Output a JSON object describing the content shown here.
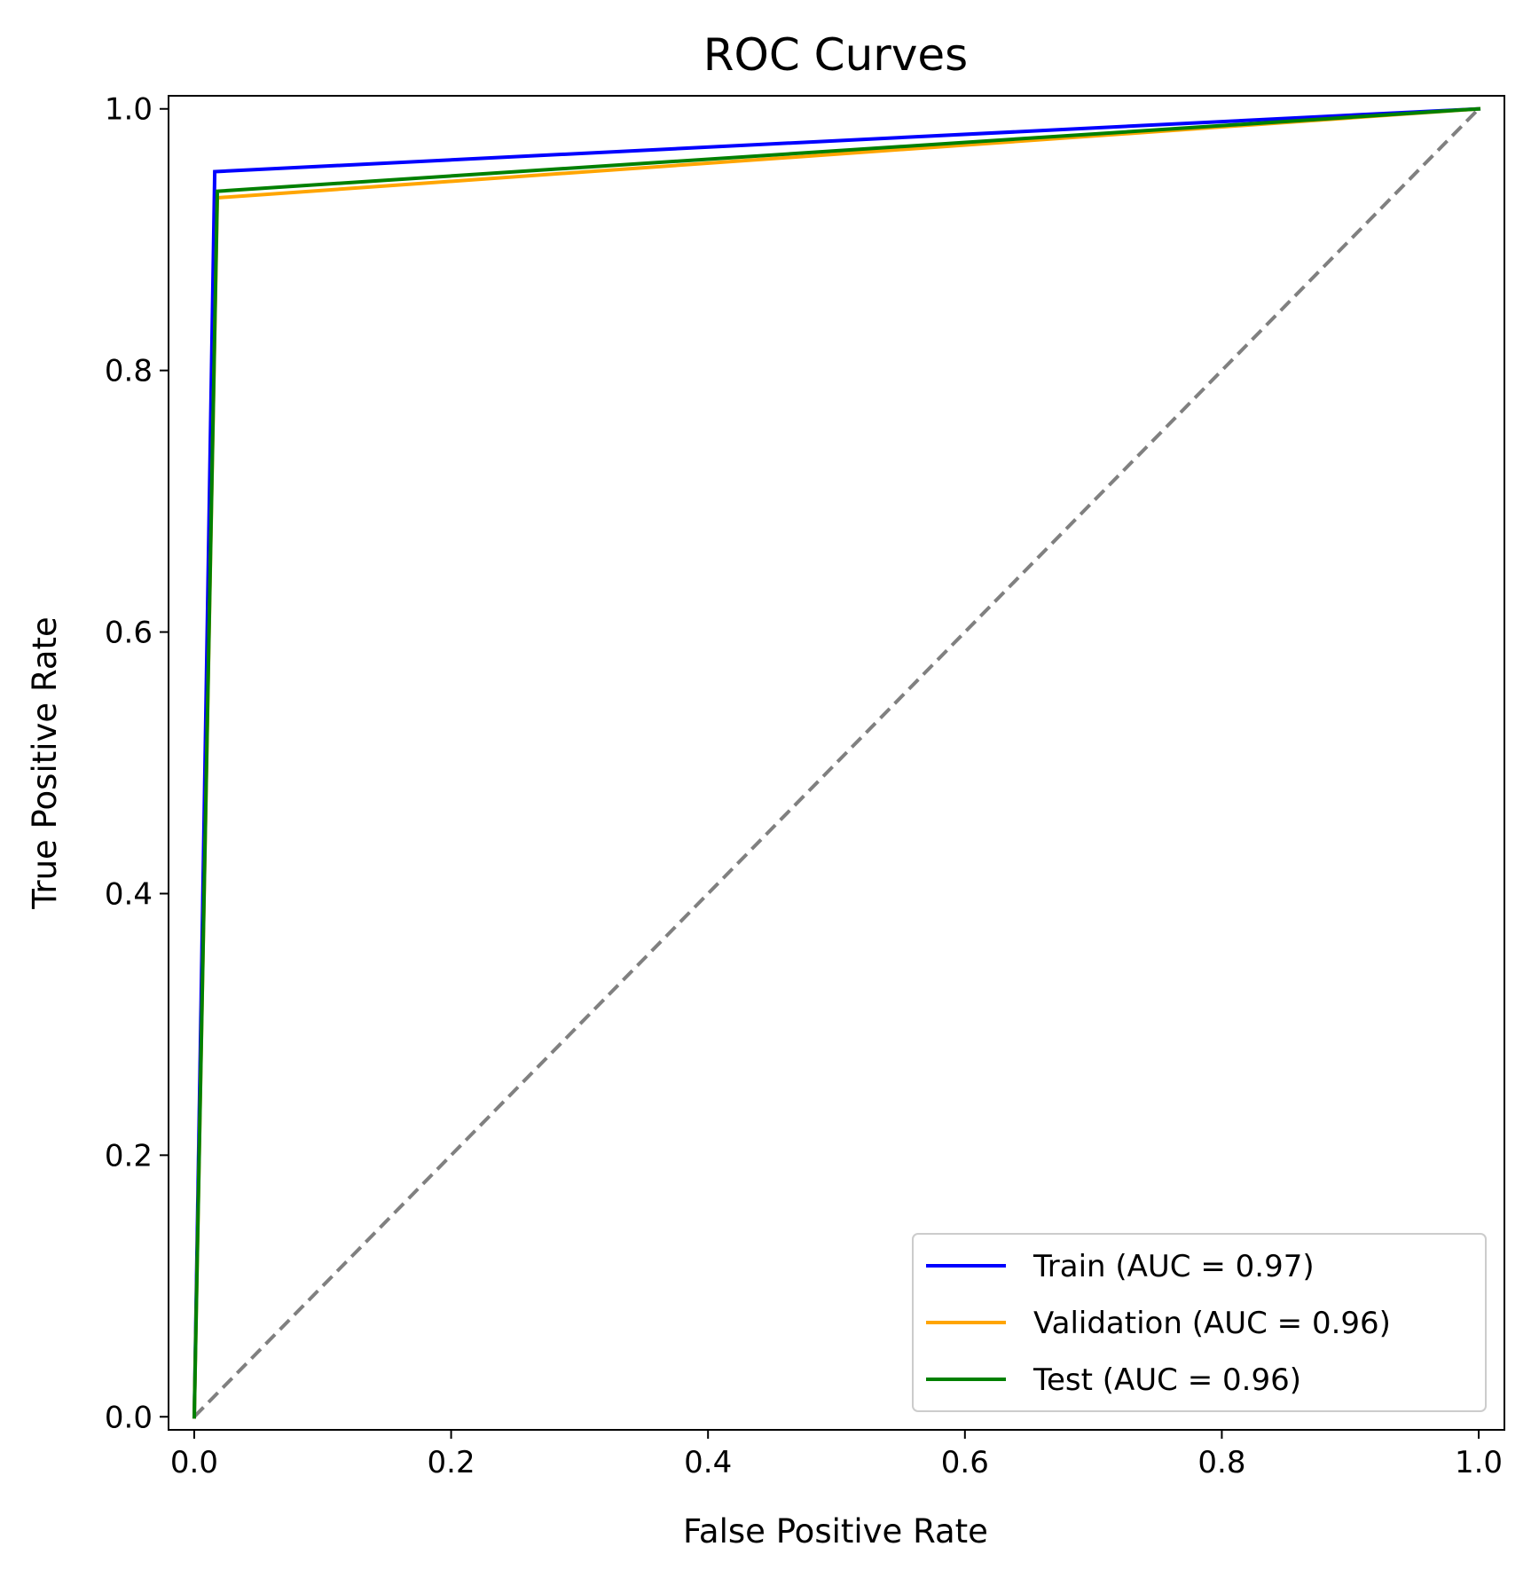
{
  "chart_data": {
    "type": "line",
    "title": "ROC Curves",
    "xlabel": "False Positive Rate",
    "ylabel": "True Positive Rate",
    "xlim": [
      -0.02,
      1.02
    ],
    "ylim": [
      -0.01,
      1.01
    ],
    "xticks": [
      {
        "value": 0.0,
        "label": "0.0"
      },
      {
        "value": 0.2,
        "label": "0.2"
      },
      {
        "value": 0.4,
        "label": "0.4"
      },
      {
        "value": 0.6,
        "label": "0.6"
      },
      {
        "value": 0.8,
        "label": "0.8"
      },
      {
        "value": 1.0,
        "label": "1.0"
      }
    ],
    "yticks": [
      {
        "value": 0.0,
        "label": "0.0"
      },
      {
        "value": 0.2,
        "label": "0.2"
      },
      {
        "value": 0.4,
        "label": "0.4"
      },
      {
        "value": 0.6,
        "label": "0.6"
      },
      {
        "value": 0.8,
        "label": "0.8"
      },
      {
        "value": 1.0,
        "label": "1.0"
      }
    ],
    "grid": false,
    "legend_position": "lower-right",
    "series": [
      {
        "name": "Train (AUC = 0.97)",
        "color": "#0000ff",
        "x": [
          0.0,
          0.016,
          1.0
        ],
        "y": [
          0.0,
          0.952,
          1.0
        ]
      },
      {
        "name": "Validation (AUC = 0.96)",
        "color": "#ffa500",
        "x": [
          0.0,
          0.018,
          1.0
        ],
        "y": [
          0.0,
          0.932,
          1.0
        ]
      },
      {
        "name": "Test (AUC = 0.96)",
        "color": "#008000",
        "x": [
          0.0,
          0.018,
          1.0
        ],
        "y": [
          0.0,
          0.937,
          1.0
        ]
      }
    ],
    "reference_line": {
      "color": "#808080",
      "style": "dashed",
      "x": [
        0.0,
        1.0
      ],
      "y": [
        0.0,
        1.0
      ]
    }
  }
}
